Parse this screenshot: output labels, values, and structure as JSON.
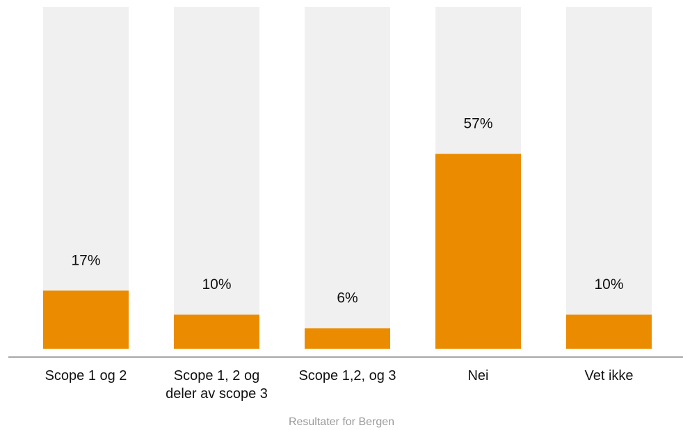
{
  "chart_data": {
    "type": "bar",
    "categories": [
      [
        "Scope 1 og 2"
      ],
      [
        "Scope 1, 2 og",
        "deler av scope 3"
      ],
      [
        "Scope 1,2, og 3"
      ],
      [
        "Nei"
      ],
      [
        "Vet ikke"
      ]
    ],
    "values": [
      17,
      10,
      6,
      57,
      10
    ],
    "value_labels": [
      "17%",
      "10%",
      "6%",
      "57%",
      "10%"
    ],
    "unit": "%",
    "ylim": [
      0,
      100
    ],
    "grid": false,
    "legend": "none",
    "caption": "Resultater for Bergen",
    "colors": {
      "bar": "#eb8c00",
      "track": "#f0f0f0",
      "axis": "#8a8a8a",
      "text": "#111111",
      "caption": "#9a9a9a"
    }
  }
}
